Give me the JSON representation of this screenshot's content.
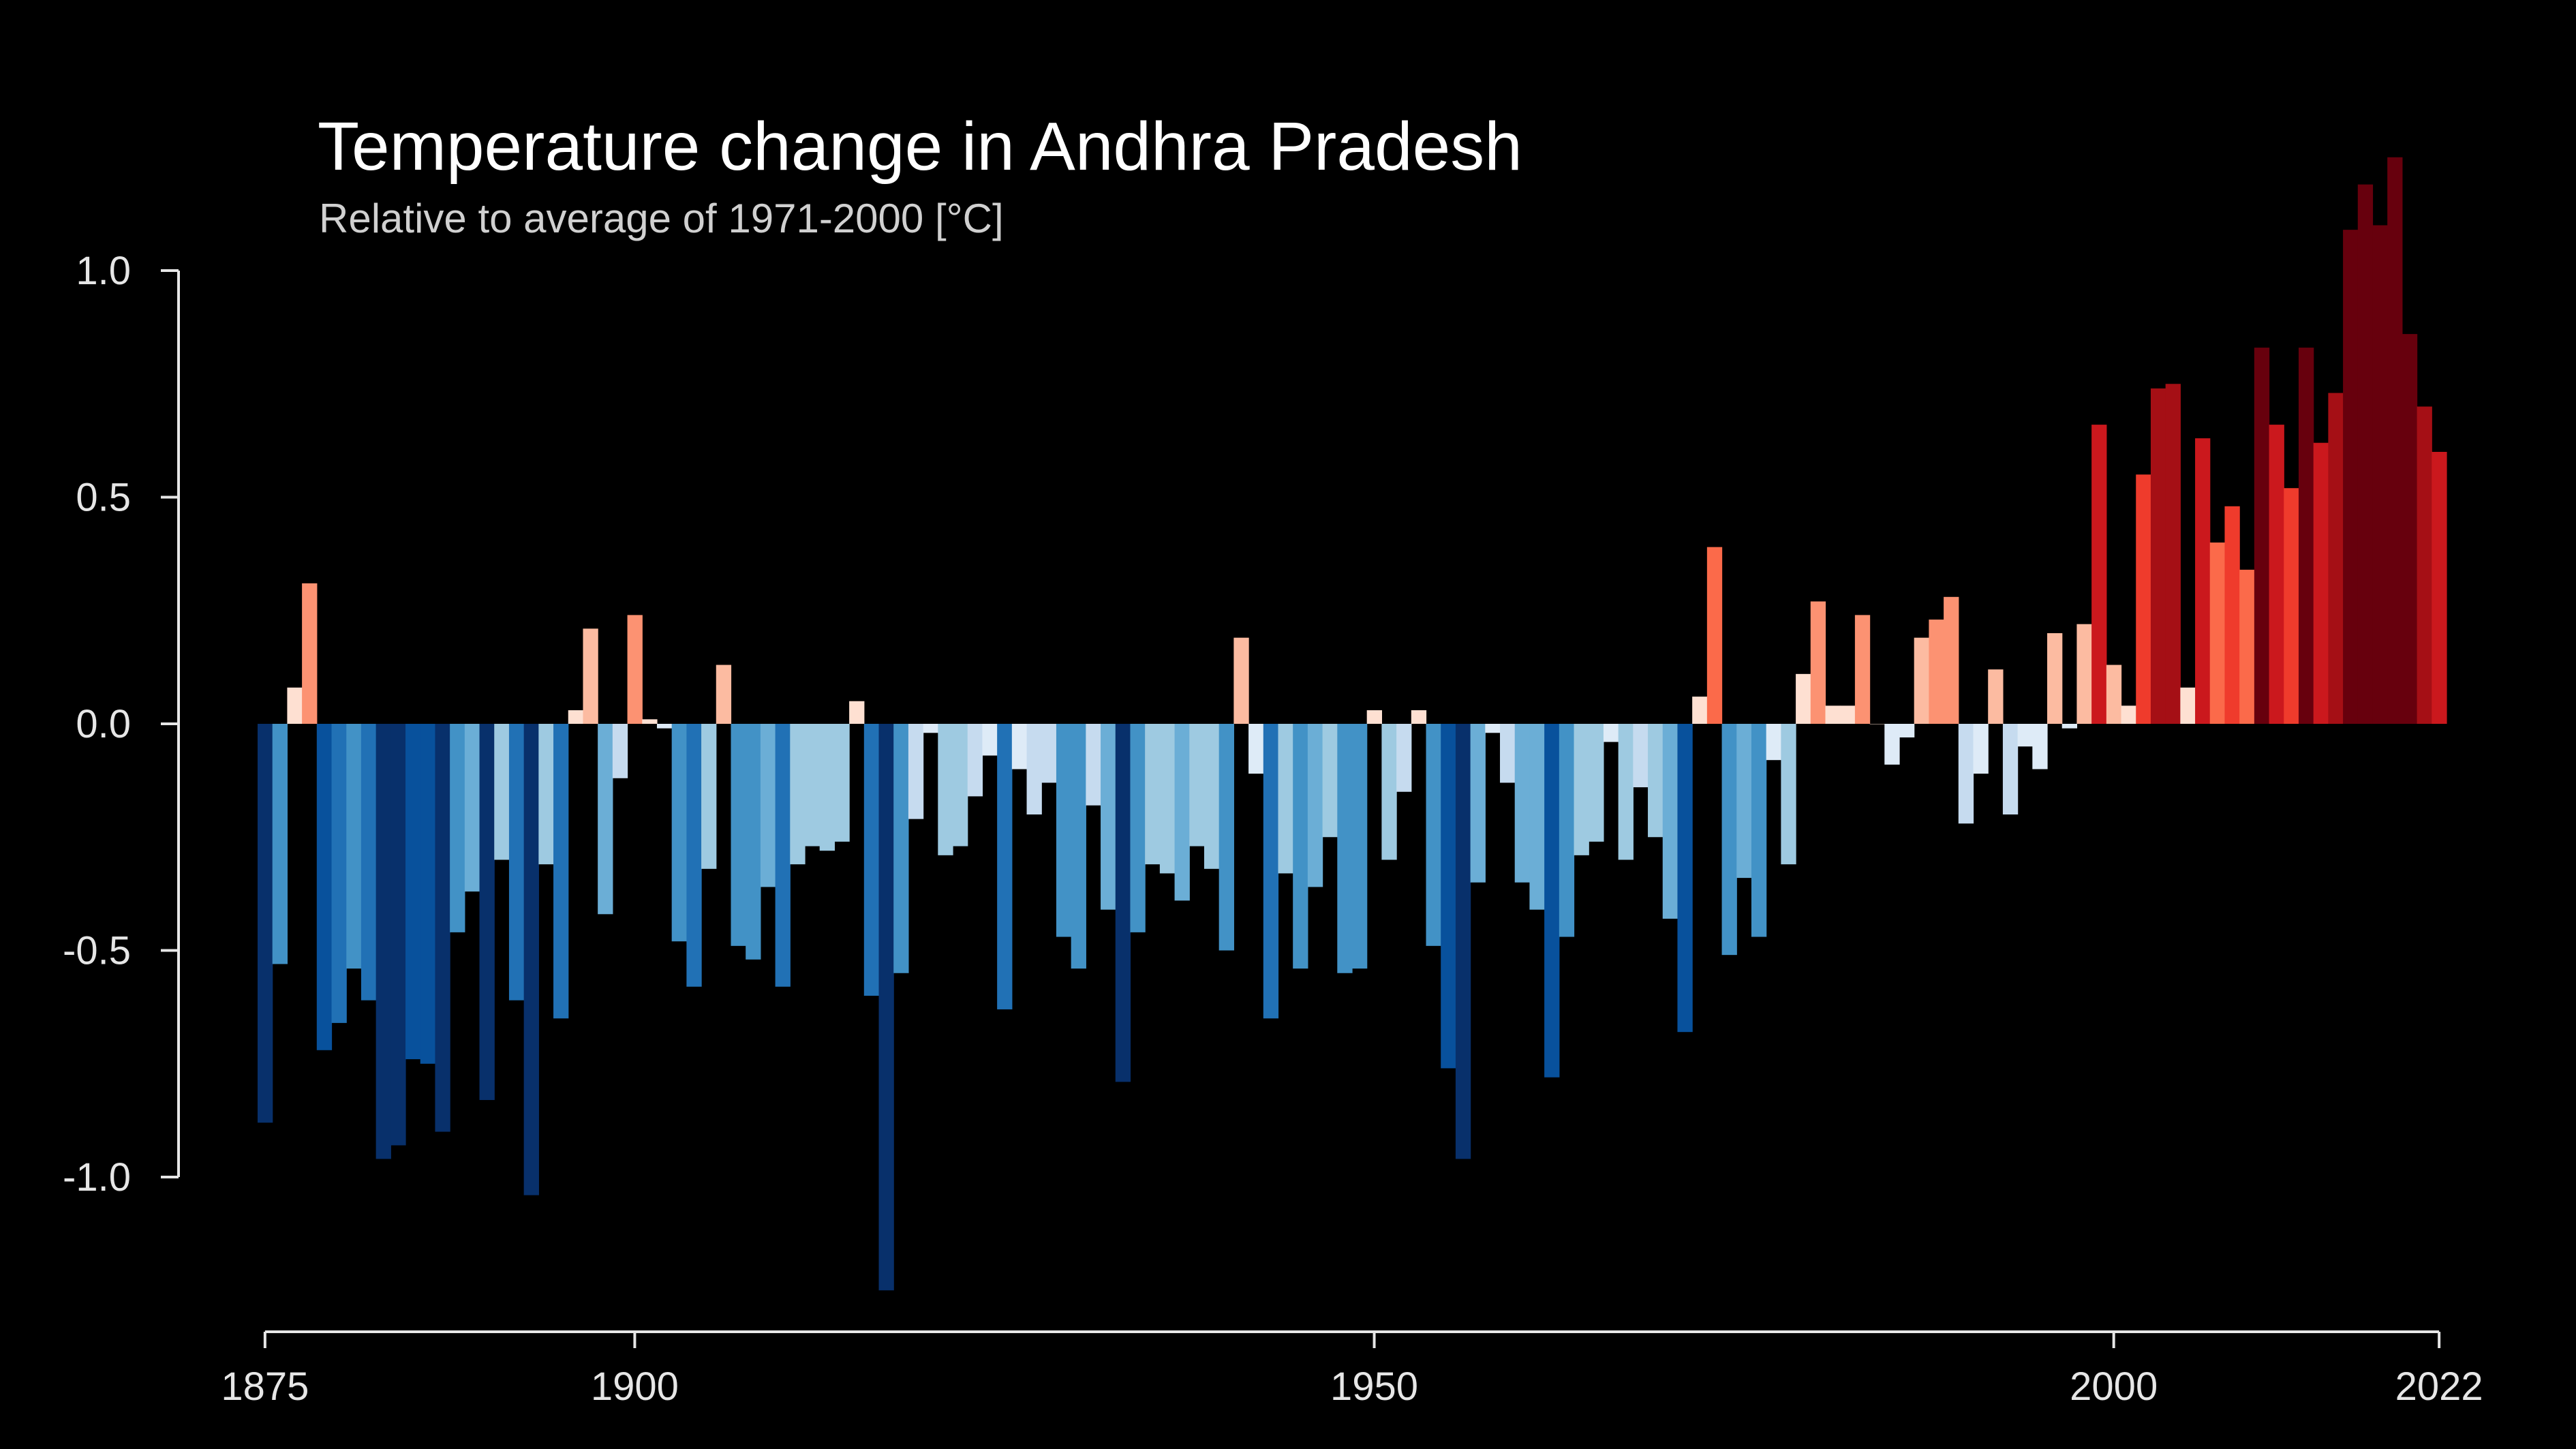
{
  "chart_data": {
    "type": "bar",
    "title": "Temperature change in Andhra Pradesh",
    "subtitle": "Relative to average of 1971-2000  [°C]",
    "xlabel": "",
    "ylabel": "",
    "x_start": 1875,
    "x_end": 2022,
    "ylim": [
      -1.25,
      1.25
    ],
    "xticks": [
      {
        "value": 1875,
        "label": "1875"
      },
      {
        "value": 1900,
        "label": "1900"
      },
      {
        "value": 1950,
        "label": "1950"
      },
      {
        "value": 2000,
        "label": "2000"
      },
      {
        "value": 2022,
        "label": "2022"
      }
    ],
    "yticks": [
      {
        "value": 1.0,
        "label": "1.0"
      },
      {
        "value": 0.5,
        "label": "0.5"
      },
      {
        "value": 0.0,
        "label": "0.0"
      },
      {
        "value": -0.5,
        "label": "-0.5"
      },
      {
        "value": -1.0,
        "label": "-1.0"
      }
    ],
    "grid": false,
    "legend": "none",
    "colors": {
      "background": "#000000",
      "axis": "#e6e6e6",
      "scale": [
        "#08306b",
        "#08519c",
        "#2171b5",
        "#4292c6",
        "#6baed6",
        "#9ecae1",
        "#c6dbef",
        "#deebf7",
        "#fee0d2",
        "#fcbba1",
        "#fc9272",
        "#fb6a4a",
        "#ef3b2c",
        "#cb181d",
        "#a50f15",
        "#67000d"
      ]
    },
    "years": [
      1875,
      1876,
      1877,
      1878,
      1879,
      1880,
      1881,
      1882,
      1883,
      1884,
      1885,
      1886,
      1887,
      1888,
      1889,
      1890,
      1891,
      1892,
      1893,
      1894,
      1895,
      1896,
      1897,
      1898,
      1899,
      1900,
      1901,
      1902,
      1903,
      1904,
      1905,
      1906,
      1907,
      1908,
      1909,
      1910,
      1911,
      1912,
      1913,
      1914,
      1915,
      1916,
      1917,
      1918,
      1919,
      1920,
      1921,
      1922,
      1923,
      1924,
      1925,
      1926,
      1927,
      1928,
      1929,
      1930,
      1931,
      1932,
      1933,
      1934,
      1935,
      1936,
      1937,
      1938,
      1939,
      1940,
      1941,
      1942,
      1943,
      1944,
      1945,
      1946,
      1947,
      1948,
      1949,
      1950,
      1951,
      1952,
      1953,
      1954,
      1955,
      1956,
      1957,
      1958,
      1959,
      1960,
      1961,
      1962,
      1963,
      1964,
      1965,
      1966,
      1967,
      1968,
      1969,
      1970,
      1971,
      1972,
      1973,
      1974,
      1975,
      1976,
      1977,
      1978,
      1979,
      1980,
      1981,
      1982,
      1983,
      1984,
      1985,
      1986,
      1987,
      1988,
      1989,
      1990,
      1991,
      1992,
      1993,
      1994,
      1995,
      1996,
      1997,
      1998,
      1999,
      2000,
      2001,
      2002,
      2003,
      2004,
      2005,
      2006,
      2007,
      2008,
      2009,
      2010,
      2011,
      2012,
      2013,
      2014,
      2015,
      2016,
      2017,
      2018,
      2019,
      2020,
      2021,
      2022
    ],
    "values": [
      -0.88,
      -0.53,
      0.08,
      0.31,
      -0.72,
      -0.66,
      -0.54,
      -0.61,
      -0.96,
      -0.93,
      -0.74,
      -0.75,
      -0.9,
      -0.46,
      -0.37,
      -0.83,
      -0.3,
      -0.61,
      -1.04,
      -0.31,
      -0.65,
      0.03,
      0.21,
      -0.42,
      -0.12,
      0.24,
      0.01,
      -0.01,
      -0.48,
      -0.58,
      -0.32,
      0.13,
      -0.49,
      -0.52,
      -0.36,
      -0.58,
      -0.31,
      -0.27,
      -0.28,
      -0.26,
      0.05,
      -0.6,
      -1.25,
      -0.55,
      -0.21,
      -0.02,
      -0.29,
      -0.27,
      -0.16,
      -0.07,
      -0.63,
      -0.1,
      -0.2,
      -0.13,
      -0.47,
      -0.54,
      -0.18,
      -0.41,
      -0.79,
      -0.46,
      -0.31,
      -0.33,
      -0.39,
      -0.27,
      -0.32,
      -0.5,
      0.19,
      -0.11,
      -0.65,
      -0.33,
      -0.54,
      -0.36,
      -0.25,
      -0.55,
      -0.54,
      0.03,
      -0.3,
      -0.15,
      0.03,
      -0.49,
      -0.76,
      -0.96,
      -0.35,
      -0.02,
      -0.13,
      -0.35,
      -0.41,
      -0.78,
      -0.47,
      -0.29,
      -0.26,
      -0.04,
      -0.3,
      -0.14,
      -0.25,
      -0.43,
      -0.68,
      0.06,
      0.39,
      -0.51,
      -0.34,
      -0.47,
      -0.08,
      -0.31,
      0.11,
      0.27,
      0.04,
      0.04,
      0.24,
      0.0,
      -0.09,
      -0.03,
      0.19,
      0.23,
      0.28,
      -0.22,
      -0.11,
      0.12,
      -0.2,
      -0.05,
      -0.1,
      0.2,
      -0.01,
      0.22,
      0.66,
      0.13,
      0.04,
      0.55,
      0.74,
      0.75,
      0.08,
      0.63,
      0.4,
      0.48,
      0.34,
      0.83,
      0.66,
      0.52,
      0.83,
      0.62,
      0.73,
      1.09,
      1.19,
      1.1,
      1.25,
      0.86,
      0.7,
      0.6
    ]
  }
}
